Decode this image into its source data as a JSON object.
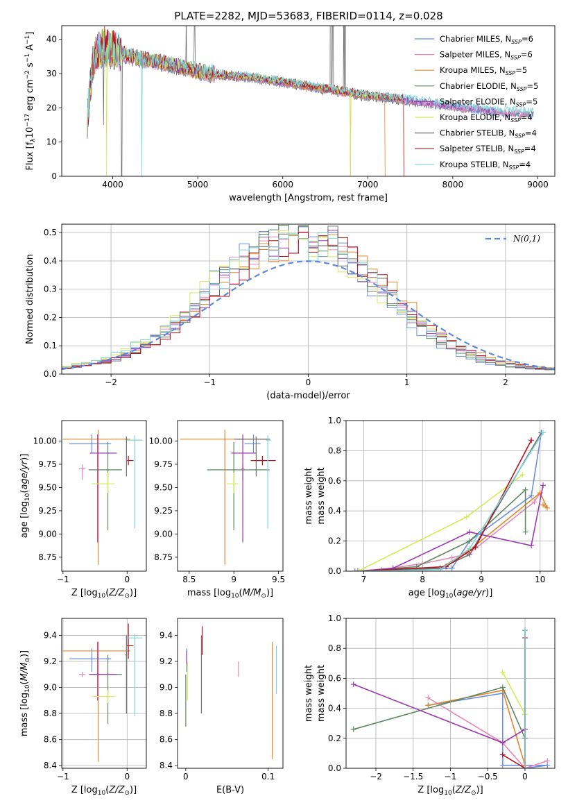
{
  "figure": {
    "title": "PLATE=2282, MJD=53683, FIBERID=0114, z=0.028"
  },
  "models": [
    {
      "name": "Chabrier MILES",
      "nssp": "6",
      "color": "#6a8fdc"
    },
    {
      "name": "Salpeter MILES",
      "nssp": "6",
      "color": "#ea86b4"
    },
    {
      "name": "Kroupa MILES",
      "nssp": "5",
      "color": "#e2862c"
    },
    {
      "name": "Chabrier ELODIE",
      "nssp": "5",
      "color": "#5d8861"
    },
    {
      "name": "Salpeter ELODIE",
      "nssp": "5",
      "color": "#9a39b2"
    },
    {
      "name": "Kroupa ELODIE",
      "nssp": "4",
      "color": "#d3ec56"
    },
    {
      "name": "Chabrier STELIB",
      "nssp": "4",
      "color": "#6e6e6e"
    },
    {
      "name": "Salpeter STELIB",
      "nssp": "4",
      "color": "#b5121b"
    },
    {
      "name": "Kroupa STELIB",
      "nssp": "4",
      "color": "#7ed3d8"
    }
  ],
  "chart_data": [
    {
      "type": "line",
      "xlabel": "wavelength [Angstrom, rest frame]",
      "ylabel": "Flux [f_λ 10^-17 erg cm^-2 s^-1 A^-1]",
      "xlim": [
        3400,
        9200
      ],
      "ylim": [
        0,
        44
      ],
      "xticks": [
        4000,
        5000,
        6000,
        7000,
        8000,
        9000
      ],
      "yticks": [
        0,
        10,
        20,
        30,
        40
      ],
      "grid": false,
      "legend": "upper-right",
      "spectrum_envelope": {
        "x": [
          3700,
          3800,
          3900,
          4000,
          4200,
          4500,
          4800,
          5000,
          5300,
          5600,
          6000,
          6500,
          7000,
          7400,
          8000,
          8500,
          9000
        ],
        "y": [
          25,
          36,
          38,
          37,
          35,
          33.5,
          32,
          30.5,
          29.5,
          29,
          27.5,
          25.5,
          23.5,
          22.5,
          20.5,
          19,
          18.5
        ]
      }
    },
    {
      "type": "step",
      "xlabel": "(data-model)/error",
      "ylabel": "Normed distribution",
      "xlim": [
        -2.5,
        2.5
      ],
      "ylim": [
        0,
        0.53
      ],
      "xticks": [
        -2,
        -1,
        0,
        1,
        2
      ],
      "yticks": [
        0.0,
        0.1,
        0.2,
        0.3,
        0.4,
        0.5
      ],
      "grid": true,
      "legend": "upper-right",
      "reference_label": "N(0,1)",
      "reference_color": "#5b87dc"
    },
    {
      "type": "errorbar",
      "xlabel": "Z [log10(Z/Z⊙)]",
      "ylabel": "age  [log10(age/yr)]",
      "xlim": [
        -1.02,
        0.3
      ],
      "ylim": [
        8.6,
        10.22
      ],
      "xticks": [
        -1,
        0
      ],
      "yticks": [
        8.75,
        9.0,
        9.25,
        9.5,
        9.75,
        10.0
      ],
      "grid": false,
      "points": [
        {
          "x": -0.55,
          "xerr": [
            0.35,
            0.3
          ],
          "y": 9.97,
          "yerr": [
            0.1,
            0.1
          ]
        },
        {
          "x": -0.7,
          "xerr": [
            0.05,
            0.05
          ],
          "y": 9.7,
          "yerr": [
            0.12,
            0.05
          ]
        },
        {
          "x": -0.45,
          "xerr": [
            0.55,
            0.5
          ],
          "y": 10.02,
          "yerr": [
            1.35,
            0.1
          ]
        },
        {
          "x": -0.3,
          "xerr": [
            0.3,
            0.22
          ],
          "y": 9.69,
          "yerr": [
            0.65,
            0.3
          ]
        },
        {
          "x": -0.46,
          "xerr": [
            0.12,
            0.3
          ],
          "y": 9.87,
          "yerr": [
            0.96,
            0.2
          ]
        },
        {
          "x": -0.3,
          "xerr": [
            0.25,
            0.1
          ],
          "y": 9.54,
          "yerr": [
            0.1,
            0.12
          ]
        },
        {
          "x": -0.01,
          "xerr": [
            0.02,
            0.01
          ],
          "y": 10.02,
          "yerr": [
            0.4,
            0.03
          ]
        },
        {
          "x": 0.02,
          "xerr": [
            0.02,
            0.08
          ],
          "y": 9.79,
          "yerr": [
            0.05,
            0.05
          ]
        },
        {
          "x": 0.12,
          "xerr": [
            0.12,
            0.12
          ],
          "y": 10.01,
          "yerr": [
            0.95,
            0.05
          ]
        }
      ]
    },
    {
      "type": "errorbar",
      "xlabel": "mass [log10(M/M⊙)]",
      "ylabel": "",
      "xlim": [
        8.37,
        9.55
      ],
      "ylim": [
        8.6,
        10.22
      ],
      "xticks": [
        8.5,
        9.0,
        9.5
      ],
      "yticks": [
        8.75,
        9.0,
        9.25,
        9.5,
        9.75,
        10.0
      ],
      "grid": false,
      "points": [
        {
          "x": 9.22,
          "xerr": [
            0.1,
            0.08
          ],
          "y": 9.97,
          "yerr": [
            0.1,
            0.1
          ]
        },
        {
          "x": 9.1,
          "xerr": [
            0.02,
            0.02
          ],
          "y": 9.7,
          "yerr": [
            0.12,
            0.05
          ]
        },
        {
          "x": 8.9,
          "xerr": [
            0.5,
            0.5
          ],
          "y": 10.02,
          "yerr": [
            1.35,
            0.1
          ]
        },
        {
          "x": 9.0,
          "xerr": [
            0.3,
            0.4
          ],
          "y": 9.69,
          "yerr": [
            0.65,
            0.3
          ]
        },
        {
          "x": 9.1,
          "xerr": [
            0.13,
            0.15
          ],
          "y": 9.87,
          "yerr": [
            0.96,
            0.2
          ]
        },
        {
          "x": 9.0,
          "xerr": [
            0.08,
            0.05
          ],
          "y": 9.54,
          "yerr": [
            0.1,
            0.12
          ]
        },
        {
          "x": 9.25,
          "xerr": [
            0.25,
            0.15
          ],
          "y": 10.02,
          "yerr": [
            0.4,
            0.03
          ]
        },
        {
          "x": 9.32,
          "xerr": [
            0.13,
            0.15
          ],
          "y": 9.79,
          "yerr": [
            0.05,
            0.05
          ]
        },
        {
          "x": 9.38,
          "xerr": [
            0.02,
            0.04
          ],
          "y": 10.01,
          "yerr": [
            0.95,
            0.05
          ]
        }
      ]
    },
    {
      "type": "line",
      "xlabel": "age  [log10(age/yr)]",
      "ylabel": "mass weight",
      "xlim": [
        6.7,
        10.25
      ],
      "ylim": [
        0,
        1.0
      ],
      "xticks": [
        7,
        8,
        9,
        10
      ],
      "yticks": [
        0.0,
        0.2,
        0.4,
        0.6,
        0.8,
        1.0
      ],
      "grid": true,
      "series": [
        {
          "x": [
            6.85,
            7.6,
            8.5,
            8.8,
            9.85,
            10.02
          ],
          "y": [
            0.0,
            0.01,
            0.02,
            0.2,
            0.5,
            0.92
          ]
        },
        {
          "x": [
            6.9,
            7.3,
            8.0,
            8.5,
            8.8,
            9.9,
            10.0
          ],
          "y": [
            0.0,
            0.01,
            0.05,
            0.09,
            0.12,
            0.46,
            0.52
          ]
        },
        {
          "x": [
            6.9,
            7.5,
            8.3,
            8.8,
            10.0,
            10.12,
            10.05
          ],
          "y": [
            0.0,
            0.01,
            0.02,
            0.14,
            0.52,
            0.42,
            0.44
          ]
        },
        {
          "x": [
            6.9,
            7.9,
            8.8,
            9.75,
            9.75
          ],
          "y": [
            0.0,
            0.03,
            0.2,
            0.54,
            0.26
          ]
        },
        {
          "x": [
            6.9,
            7.5,
            8.8,
            9.85,
            10.05
          ],
          "y": [
            0.0,
            0.02,
            0.26,
            0.17,
            0.57
          ]
        },
        {
          "x": [
            6.9,
            8.75,
            9.7
          ],
          "y": [
            0.0,
            0.36,
            0.64
          ]
        },
        {
          "x": [
            6.9,
            8.3,
            8.8,
            10.02
          ],
          "y": [
            0.0,
            0.02,
            0.11,
            0.92
          ]
        },
        {
          "x": [
            6.9,
            8.4,
            8.9,
            9.85
          ],
          "y": [
            0.0,
            0.03,
            0.16,
            0.87
          ]
        },
        {
          "x": [
            6.9,
            8.3,
            8.8,
            10.05
          ],
          "y": [
            0.0,
            0.01,
            0.15,
            0.92
          ]
        }
      ]
    },
    {
      "type": "errorbar",
      "xlabel": "Z [log10(Z/Z⊙)]",
      "ylabel": "mass [log10(M/M⊙)]",
      "xlim": [
        -1.02,
        0.3
      ],
      "ylim": [
        8.38,
        9.53
      ],
      "xticks": [
        -1,
        0
      ],
      "yticks": [
        8.4,
        8.6,
        8.8,
        9.0,
        9.2,
        9.4
      ],
      "grid": true,
      "points": [
        {
          "x": -0.55,
          "xerr": [
            0.35,
            0.3
          ],
          "y": 9.22,
          "yerr": [
            0.1,
            0.08
          ]
        },
        {
          "x": -0.7,
          "xerr": [
            0.05,
            0.05
          ],
          "y": 9.1,
          "yerr": [
            0.02,
            0.02
          ]
        },
        {
          "x": -0.45,
          "xerr": [
            0.55,
            0.5
          ],
          "y": 9.28,
          "yerr": [
            0.85,
            0.07
          ]
        },
        {
          "x": -0.3,
          "xerr": [
            0.3,
            0.22
          ],
          "y": 9.1,
          "yerr": [
            0.38,
            0.15
          ]
        },
        {
          "x": -0.46,
          "xerr": [
            0.12,
            0.3
          ],
          "y": 9.1,
          "yerr": [
            0.2,
            0.25
          ]
        },
        {
          "x": -0.3,
          "xerr": [
            0.25,
            0.1
          ],
          "y": 8.93,
          "yerr": [
            0.05,
            0.05
          ]
        },
        {
          "x": -0.01,
          "xerr": [
            0.02,
            0.01
          ],
          "y": 9.25,
          "yerr": [
            0.45,
            0.15
          ]
        },
        {
          "x": 0.02,
          "xerr": [
            0.02,
            0.08
          ],
          "y": 9.32,
          "yerr": [
            0.1,
            0.17
          ]
        },
        {
          "x": 0.12,
          "xerr": [
            0.12,
            0.12
          ],
          "y": 9.38,
          "yerr": [
            0.6,
            0.03
          ]
        }
      ]
    },
    {
      "type": "errorbar",
      "xlabel": "E(B-V)",
      "ylabel": "",
      "xlim": [
        -0.01,
        0.118
      ],
      "ylim": [
        8.38,
        9.53
      ],
      "xticks": [
        0.0,
        0.1
      ],
      "yticks": [
        8.4,
        8.6,
        8.8,
        9.0,
        9.2,
        9.4
      ],
      "grid": false,
      "points": [
        {
          "x": 0.001,
          "y": 9.22,
          "yerr": [
            0.1,
            0.08
          ]
        },
        {
          "x": 0.064,
          "y": 9.1,
          "yerr": [
            0.02,
            0.1
          ]
        },
        {
          "x": 0.105,
          "y": 9.0,
          "yerr": [
            0.55,
            0.35
          ]
        },
        {
          "x": 0.0,
          "y": 8.9,
          "yerr": [
            0.2,
            0.2
          ]
        },
        {
          "x": 0.001,
          "y": 9.23,
          "yerr": [
            0.05,
            0.05
          ]
        },
        {
          "x": 0.002,
          "y": 9.0,
          "yerr": [
            0.1,
            0.2
          ]
        },
        {
          "x": 0.019,
          "y": 9.1,
          "yerr": [
            0.3,
            0.3
          ]
        },
        {
          "x": 0.02,
          "y": 9.35,
          "yerr": [
            0.1,
            0.12
          ]
        },
        {
          "x": 0.11,
          "y": 9.1,
          "yerr": [
            0.15,
            0.22
          ]
        }
      ]
    },
    {
      "type": "line",
      "xlabel": "Z [log10(Z/Z⊙)]",
      "ylabel": "mass weight",
      "xlim": [
        -2.4,
        0.4
      ],
      "ylim": [
        0,
        1.0
      ],
      "xticks": [
        -2.0,
        -1.5,
        -1.0,
        -0.5,
        0.0
      ],
      "yticks": [
        0.0,
        0.2,
        0.4,
        0.6,
        0.8,
        1.0
      ],
      "grid": true,
      "series": [
        {
          "x": [
            -1.3,
            -0.3,
            -0.3,
            0.3,
            0.0,
            0.0
          ],
          "y": [
            0.42,
            0.5,
            0.02,
            0.02,
            0.0,
            0.92
          ]
        },
        {
          "x": [
            -1.3,
            -0.3,
            0.0,
            0.3
          ],
          "y": [
            0.47,
            0.17,
            0.0,
            0.05
          ]
        },
        {
          "x": [
            -1.3,
            -0.3,
            0.0,
            0.0
          ],
          "y": [
            0.42,
            0.52,
            0.02,
            0.0
          ]
        },
        {
          "x": [
            -2.3,
            -0.3,
            0.0
          ],
          "y": [
            0.26,
            0.54,
            0.2
          ]
        },
        {
          "x": [
            -2.3,
            -0.3,
            0.0
          ],
          "y": [
            0.56,
            0.17,
            0.26
          ]
        },
        {
          "x": [
            -0.3,
            0.0
          ],
          "y": [
            0.64,
            0.36
          ]
        },
        {
          "x": [
            0.0,
            0.0
          ],
          "y": [
            0.0,
            0.92
          ]
        },
        {
          "x": [
            -0.3,
            0.0,
            0.0
          ],
          "y": [
            0.09,
            0.0,
            0.87
          ]
        },
        {
          "x": [
            0.0,
            0.0
          ],
          "y": [
            0.0,
            0.92
          ]
        }
      ]
    }
  ]
}
